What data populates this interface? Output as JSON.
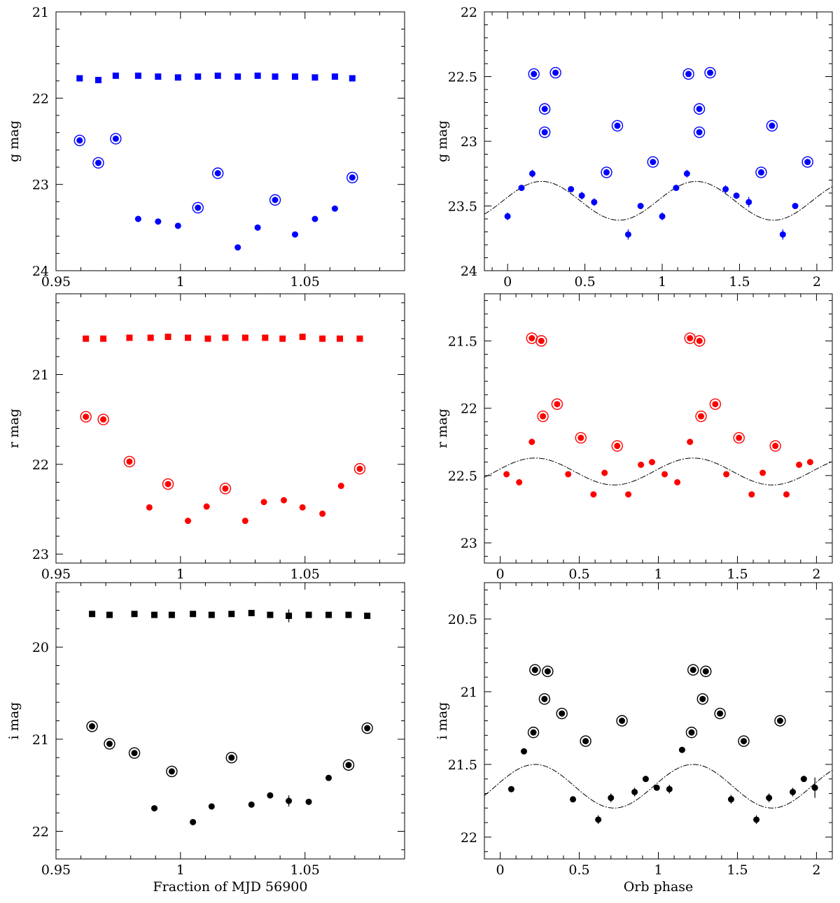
{
  "chart_data": [
    {
      "panel": "g-time",
      "type": "scatter",
      "xlabel": "",
      "ylabel": "g mag",
      "xlim": [
        0.95,
        1.09
      ],
      "ylim": [
        24,
        21
      ],
      "xticks": [
        0.95,
        1,
        1.05
      ],
      "yticks": [
        21,
        22,
        23,
        24
      ],
      "color": "#0000ff",
      "series": [
        {
          "marker": "square",
          "points": [
            [
              0.9595,
              21.77
            ],
            [
              0.967,
              21.79
            ],
            [
              0.974,
              21.74
            ],
            [
              0.983,
              21.74
            ],
            [
              0.991,
              21.75
            ],
            [
              0.999,
              21.76
            ],
            [
              1.007,
              21.75
            ],
            [
              1.015,
              21.74
            ],
            [
              1.023,
              21.75
            ],
            [
              1.031,
              21.74
            ],
            [
              1.038,
              21.75
            ],
            [
              1.046,
              21.75
            ],
            [
              1.054,
              21.76
            ],
            [
              1.062,
              21.75
            ],
            [
              1.069,
              21.77
            ]
          ]
        },
        {
          "marker": "dot",
          "points": [
            [
              0.983,
              23.4
            ],
            [
              0.991,
              23.43
            ],
            [
              0.999,
              23.48
            ],
            [
              1.023,
              23.73
            ],
            [
              1.031,
              23.5
            ],
            [
              1.046,
              23.58
            ],
            [
              1.054,
              23.4
            ],
            [
              1.062,
              23.28
            ]
          ]
        },
        {
          "marker": "circled-dot",
          "points": [
            [
              0.9595,
              22.49
            ],
            [
              0.967,
              22.75
            ],
            [
              0.974,
              22.47
            ],
            [
              1.007,
              23.27
            ],
            [
              1.015,
              22.87
            ],
            [
              1.038,
              23.18
            ],
            [
              1.069,
              22.92
            ]
          ]
        }
      ]
    },
    {
      "panel": "g-phase",
      "type": "scatter",
      "xlabel": "",
      "ylabel": "g mag",
      "xlim": [
        -0.15,
        2.1
      ],
      "ylim": [
        24,
        22
      ],
      "xticks": [
        0,
        0.5,
        1,
        1.5,
        2
      ],
      "yticks": [
        22,
        22.5,
        23,
        23.5,
        24
      ],
      "yticklabels": [
        "22",
        "22.5",
        "23",
        "23.5",
        "24"
      ],
      "color": "#0000ff",
      "model": {
        "mean": 23.46,
        "amplitude": 0.15,
        "period": 1,
        "min_phase": 0.72
      },
      "series": [
        {
          "marker": "dot",
          "points": [
            [
              0.0,
              23.58,
              0.03
            ],
            [
              0.09,
              23.36,
              0.02
            ],
            [
              0.16,
              23.25,
              0.03
            ],
            [
              0.41,
              23.37,
              0.02
            ],
            [
              0.48,
              23.42,
              0.03
            ],
            [
              0.56,
              23.47,
              0.03
            ],
            [
              0.78,
              23.72,
              0.04
            ],
            [
              0.86,
              23.5,
              0.02
            ],
            [
              1.0,
              23.58,
              0.03
            ],
            [
              1.09,
              23.36,
              0.02
            ],
            [
              1.16,
              23.25,
              0.03
            ],
            [
              1.41,
              23.37,
              0.03
            ],
            [
              1.48,
              23.42,
              0.02
            ],
            [
              1.56,
              23.47,
              0.04
            ],
            [
              1.78,
              23.72,
              0.04
            ],
            [
              1.86,
              23.5,
              0.02
            ]
          ]
        },
        {
          "marker": "circled-dot",
          "points": [
            [
              0.17,
              22.48
            ],
            [
              0.24,
              22.75
            ],
            [
              0.24,
              22.93
            ],
            [
              0.31,
              22.47
            ],
            [
              0.64,
              23.24
            ],
            [
              0.71,
              22.88
            ],
            [
              0.94,
              23.16
            ],
            [
              1.17,
              22.48
            ],
            [
              1.24,
              22.75
            ],
            [
              1.24,
              22.93
            ],
            [
              1.31,
              22.47
            ],
            [
              1.64,
              23.24
            ],
            [
              1.71,
              22.88
            ],
            [
              1.94,
              23.16
            ]
          ]
        }
      ]
    },
    {
      "panel": "r-time",
      "type": "scatter",
      "xlabel": "",
      "ylabel": "r mag",
      "xlim": [
        0.95,
        1.09
      ],
      "ylim": [
        23.1,
        20.1
      ],
      "xticks": [
        0.95,
        1,
        1.05
      ],
      "yticks": [
        21,
        22,
        23
      ],
      "color": "#ff0000",
      "series": [
        {
          "marker": "square",
          "points": [
            [
              0.962,
              20.6
            ],
            [
              0.969,
              20.6
            ],
            [
              0.9795,
              20.59
            ],
            [
              0.988,
              20.59
            ],
            [
              0.995,
              20.58
            ],
            [
              1.003,
              20.59
            ],
            [
              1.011,
              20.6
            ],
            [
              1.018,
              20.59
            ],
            [
              1.026,
              20.59
            ],
            [
              1.034,
              20.59
            ],
            [
              1.041,
              20.6
            ],
            [
              1.049,
              20.58
            ],
            [
              1.057,
              20.6
            ],
            [
              1.064,
              20.6
            ],
            [
              1.072,
              20.6
            ]
          ]
        },
        {
          "marker": "dot",
          "points": [
            [
              0.9875,
              22.48
            ],
            [
              1.003,
              22.63
            ],
            [
              1.0105,
              22.47
            ],
            [
              1.026,
              22.63
            ],
            [
              1.0335,
              22.42
            ],
            [
              1.0415,
              22.4
            ],
            [
              1.049,
              22.48
            ],
            [
              1.057,
              22.55
            ],
            [
              1.0645,
              22.24
            ]
          ]
        },
        {
          "marker": "circled-dot",
          "points": [
            [
              0.962,
              21.47
            ],
            [
              0.969,
              21.5
            ],
            [
              0.9795,
              21.97
            ],
            [
              0.995,
              22.22
            ],
            [
              1.018,
              22.27
            ],
            [
              1.072,
              22.05
            ]
          ]
        }
      ]
    },
    {
      "panel": "r-phase",
      "type": "scatter",
      "xlabel": "",
      "ylabel": "r mag",
      "xlim": [
        -0.1,
        2.1
      ],
      "ylim": [
        23.15,
        21.15
      ],
      "xticks": [
        0,
        0.5,
        1,
        1.5,
        2
      ],
      "yticks": [
        21.5,
        22,
        22.5,
        23
      ],
      "yticklabels": [
        "21.5",
        "22",
        "22.5",
        "23"
      ],
      "color": "#ff0000",
      "model": {
        "mean": 22.47,
        "amplitude": 0.1,
        "period": 1,
        "min_phase": 0.72
      },
      "series": [
        {
          "marker": "dot",
          "points": [
            [
              0.04,
              22.49
            ],
            [
              0.12,
              22.55
            ],
            [
              0.2,
              22.25
            ],
            [
              0.43,
              22.49
            ],
            [
              0.59,
              22.64
            ],
            [
              0.66,
              22.48
            ],
            [
              0.81,
              22.64
            ],
            [
              0.89,
              22.42
            ],
            [
              0.96,
              22.4
            ],
            [
              1.04,
              22.49
            ],
            [
              1.12,
              22.55
            ],
            [
              1.2,
              22.25
            ],
            [
              1.43,
              22.49
            ],
            [
              1.59,
              22.64
            ],
            [
              1.66,
              22.48
            ],
            [
              1.81,
              22.64
            ],
            [
              1.89,
              22.42
            ],
            [
              1.96,
              22.4
            ]
          ]
        },
        {
          "marker": "circled-dot",
          "points": [
            [
              0.2,
              21.48
            ],
            [
              0.26,
              21.5
            ],
            [
              0.27,
              22.06
            ],
            [
              0.36,
              21.97
            ],
            [
              0.51,
              22.22
            ],
            [
              0.74,
              22.28
            ],
            [
              1.2,
              21.48
            ],
            [
              1.26,
              21.5
            ],
            [
              1.27,
              22.06
            ],
            [
              1.36,
              21.97
            ],
            [
              1.51,
              22.22
            ],
            [
              1.74,
              22.28
            ]
          ]
        }
      ]
    },
    {
      "panel": "i-time",
      "type": "scatter",
      "xlabel": "Fraction of MJD 56900",
      "ylabel": "i mag",
      "xlim": [
        0.95,
        1.09
      ],
      "ylim": [
        22.3,
        19.3
      ],
      "xticks": [
        0.95,
        1,
        1.05
      ],
      "yticks": [
        20,
        21,
        22
      ],
      "color": "#000000",
      "series": [
        {
          "marker": "square",
          "points": [
            [
              0.9645,
              19.64,
              0
            ],
            [
              0.9715,
              19.65,
              0
            ],
            [
              0.9815,
              19.64,
              0
            ],
            [
              0.9895,
              19.65,
              0
            ],
            [
              0.9965,
              19.65,
              0
            ],
            [
              1.005,
              19.64,
              0
            ],
            [
              1.0125,
              19.65,
              0
            ],
            [
              1.0205,
              19.64,
              0
            ],
            [
              1.0285,
              19.63,
              0
            ],
            [
              1.036,
              19.65,
              0
            ],
            [
              1.0435,
              19.66,
              0.07
            ],
            [
              1.0515,
              19.65,
              0
            ],
            [
              1.0595,
              19.65,
              0
            ],
            [
              1.0675,
              19.65,
              0
            ],
            [
              1.075,
              19.66,
              0
            ]
          ]
        },
        {
          "marker": "dot",
          "points": [
            [
              0.9895,
              21.75,
              0
            ],
            [
              1.005,
              21.9,
              0
            ],
            [
              1.0125,
              21.73,
              0
            ],
            [
              1.0285,
              21.71,
              0
            ],
            [
              1.036,
              21.61,
              0
            ],
            [
              1.0435,
              21.67,
              0.06
            ],
            [
              1.0515,
              21.68,
              0
            ],
            [
              1.0595,
              21.42,
              0
            ]
          ]
        },
        {
          "marker": "circled-dot",
          "points": [
            [
              0.9645,
              20.86
            ],
            [
              0.9715,
              21.05
            ],
            [
              0.9815,
              21.15
            ],
            [
              0.9965,
              21.35
            ],
            [
              1.0205,
              21.2
            ],
            [
              1.0675,
              21.28
            ],
            [
              1.075,
              20.88
            ]
          ]
        }
      ]
    },
    {
      "panel": "i-phase",
      "type": "scatter",
      "xlabel": "Orb phase",
      "ylabel": "i mag",
      "xlim": [
        -0.1,
        2.1
      ],
      "ylim": [
        22.15,
        20.25
      ],
      "xticks": [
        0,
        0.5,
        1,
        1.5,
        2
      ],
      "yticks": [
        20.5,
        21,
        21.5,
        22
      ],
      "yticklabels": [
        "20.5",
        "21",
        "21.5",
        "22"
      ],
      "color": "#000000",
      "model": {
        "mean": 21.65,
        "amplitude": 0.15,
        "period": 1,
        "min_phase": 0.72
      },
      "series": [
        {
          "marker": "dot",
          "points": [
            [
              0.07,
              21.67,
              0
            ],
            [
              0.15,
              21.41,
              0.02
            ],
            [
              0.46,
              21.74,
              0
            ],
            [
              0.62,
              21.88,
              0.03
            ],
            [
              0.7,
              21.73,
              0.03
            ],
            [
              0.85,
              21.69,
              0.03
            ],
            [
              0.92,
              21.6,
              0.02
            ],
            [
              0.99,
              21.66,
              0
            ],
            [
              1.07,
              21.67,
              0.03
            ],
            [
              1.15,
              21.4,
              0
            ],
            [
              1.46,
              21.74,
              0.03
            ],
            [
              1.62,
              21.88,
              0.03
            ],
            [
              1.7,
              21.73,
              0.03
            ],
            [
              1.85,
              21.69,
              0.03
            ],
            [
              1.92,
              21.6,
              0
            ],
            [
              1.99,
              21.66,
              0.07
            ]
          ]
        },
        {
          "marker": "circled-dot",
          "points": [
            [
              0.21,
              21.28
            ],
            [
              0.22,
              20.85
            ],
            [
              0.28,
              21.05
            ],
            [
              0.3,
              20.86
            ],
            [
              0.39,
              21.15
            ],
            [
              0.54,
              21.34
            ],
            [
              0.77,
              21.2
            ],
            [
              1.21,
              21.28
            ],
            [
              1.22,
              20.85
            ],
            [
              1.28,
              21.05
            ],
            [
              1.3,
              20.86
            ],
            [
              1.39,
              21.15
            ],
            [
              1.54,
              21.34
            ],
            [
              1.77,
              21.2
            ]
          ]
        }
      ]
    }
  ]
}
